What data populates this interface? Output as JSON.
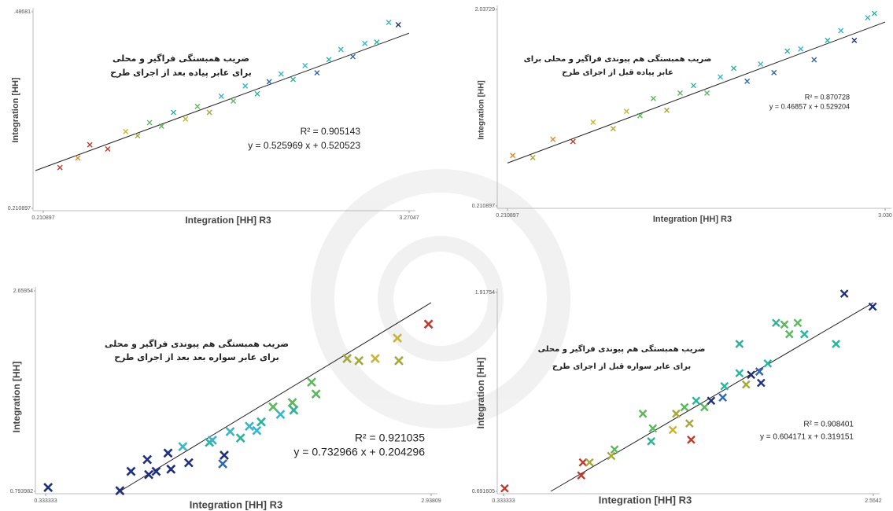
{
  "chart_data": [
    {
      "type": "scatter",
      "annotations": [
        "ضریب همبستگی فراگیر و محلی",
        "برای عابر پیاده بعد از اجرای طرح",
        "R² = 0.905143",
        "y = 0.525969 x + 0.520523"
      ],
      "xlabel": "Integration [HH] R3",
      "ylabel": "Integration [HH]",
      "xlim": [
        0.210897,
        3.27047
      ],
      "ylim": [
        0.210897,
        3.48681
      ],
      "xticks": [
        0.210897,
        3.27047
      ],
      "yticks": [
        0.210897,
        {
          "value": 3.48681,
          "label": ".48681"
        }
      ],
      "x": [
        0.35,
        0.5,
        0.6,
        0.75,
        0.9,
        1.0,
        1.1,
        1.2,
        1.3,
        1.4,
        1.5,
        1.6,
        1.7,
        1.8,
        1.9,
        2.0,
        2.1,
        2.2,
        2.3,
        2.4,
        2.5,
        2.6,
        2.7,
        2.8,
        2.9,
        3.0,
        3.1,
        3.18
      ],
      "y": [
        0.89,
        1.05,
        1.27,
        1.2,
        1.49,
        1.42,
        1.64,
        1.58,
        1.81,
        1.7,
        1.91,
        1.81,
        2.08,
        2.0,
        2.25,
        2.12,
        2.32,
        2.45,
        2.36,
        2.59,
        2.47,
        2.69,
        2.86,
        2.74,
        2.96,
        2.98,
        3.31,
        3.27
      ],
      "colors": [
        "#c0392b",
        "#d98c2b",
        "#c0392b",
        "#c0392b",
        "#c9b43a",
        "#a5a83a",
        "#5cb85c",
        "#5cb85c",
        "#2bb39b",
        "#c9b43a",
        "#5cb85c",
        "#a5a83a",
        "#3bb3c8",
        "#5cb85c",
        "#3bb3c8",
        "#2bb39b",
        "#3366aa",
        "#3bb3c8",
        "#2bb39b",
        "#3bb3c8",
        "#3366aa",
        "#2bb39b",
        "#3bb3c8",
        "#3366aa",
        "#3bb3c8",
        "#2bb39b",
        "#3bb3c8",
        "#1f2f7a"
      ],
      "fit_line": {
        "x": [
          0.145,
          3.27
        ],
        "y": [
          0.84,
          3.13
        ]
      }
    },
    {
      "type": "scatter",
      "annotations": [
        "ضریب همبستگی هم پیوندی فراگیر و محلی برای",
        "عابر پیاده قبل از اجرای طرح",
        "R² = 0.870728",
        "y = 0.46857 x + 0.529204"
      ],
      "xlabel": "Integration [HH] R3",
      "ylabel": "Integration [HH]",
      "xlim": [
        0.210897,
        3.03
      ],
      "ylim": [
        0.210897,
        2.03729
      ],
      "xticks": [
        0.210897,
        {
          "value": 3.03,
          "label": "3.030"
        }
      ],
      "yticks": [
        0.210897,
        2.03729
      ],
      "x": [
        0.25,
        0.4,
        0.55,
        0.7,
        0.85,
        1.0,
        1.1,
        1.2,
        1.3,
        1.4,
        1.5,
        1.6,
        1.7,
        1.8,
        1.9,
        2.0,
        2.1,
        2.2,
        2.3,
        2.4,
        2.5,
        2.6,
        2.7,
        2.8,
        2.9,
        2.95
      ],
      "y": [
        0.68,
        0.66,
        0.83,
        0.81,
        0.99,
        0.93,
        1.09,
        1.05,
        1.21,
        1.1,
        1.26,
        1.33,
        1.26,
        1.41,
        1.49,
        1.37,
        1.53,
        1.45,
        1.65,
        1.67,
        1.57,
        1.75,
        1.84,
        1.75,
        1.96,
        2.0
      ],
      "colors": [
        "#d98c2b",
        "#a5a83a",
        "#d98c2b",
        "#c0392b",
        "#c9b43a",
        "#a5a83a",
        "#c9b43a",
        "#5cb85c",
        "#5cb85c",
        "#a5a83a",
        "#5cb85c",
        "#2bb39b",
        "#5cb85c",
        "#3bb3c8",
        "#2bb39b",
        "#3366aa",
        "#3bb3c8",
        "#3366aa",
        "#2bb39b",
        "#3bb3c8",
        "#3366aa",
        "#2bb39b",
        "#3bb3c8",
        "#1f2f7a",
        "#3bb3c8",
        "#2bb39b"
      ],
      "fit_line": {
        "x": [
          0.210897,
          3.03
        ],
        "y": [
          0.61,
          1.92
        ]
      }
    },
    {
      "type": "scatter",
      "annotations": [
        "ضریب همبستگی هم پیوندی فراگیر و محلی",
        "برای عابر سواره بعد بعد از اجرای طرح",
        "R² = 0.921035",
        "y = 0.732966 x + 0.204296"
      ],
      "xlabel": "Integration [HH] R3",
      "ylabel": "Integration [HH]",
      "xlim": [
        0.333333,
        2.93809
      ],
      "ylim": [
        0.793982,
        2.65954
      ],
      "xticks": [
        0.333333,
        2.93809
      ],
      "yticks": [
        0.793982,
        2.65954
      ],
      "x": [
        0.35,
        0.835,
        0.91,
        1.02,
        1.03,
        1.08,
        1.16,
        1.18,
        1.26,
        1.3,
        1.44,
        1.46,
        1.54,
        1.53,
        1.58,
        1.65,
        1.71,
        1.76,
        1.79,
        1.87,
        1.92,
        2.0,
        2.01,
        2.13,
        2.16,
        2.37,
        2.45,
        2.56,
        2.71,
        2.72,
        2.92
      ],
      "y": [
        0.83,
        0.8,
        0.98,
        1.09,
        0.95,
        0.98,
        1.15,
        1.0,
        1.21,
        1.06,
        1.25,
        1.27,
        1.13,
        1.05,
        1.35,
        1.29,
        1.4,
        1.36,
        1.44,
        1.58,
        1.51,
        1.62,
        1.55,
        1.81,
        1.7,
        2.03,
        2.01,
        2.03,
        2.22,
        2.01,
        2.35
      ],
      "colors": [
        "#1f2f7a",
        "#1f2f7a",
        "#1f2f7a",
        "#1f2f7a",
        "#1f2f7a",
        "#1f2f7a",
        "#1f2f7a",
        "#1f2f7a",
        "#3bb3c8",
        "#1f2f7a",
        "#2bb39b",
        "#3bb3c8",
        "#1f2f7a",
        "#3366aa",
        "#3bb3c8",
        "#2bb39b",
        "#3bb3c8",
        "#3bb3c8",
        "#2bb39b",
        "#5cb85c",
        "#3bb3c8",
        "#5cb85c",
        "#2bb39b",
        "#5cb85c",
        "#5cb85c",
        "#a5a83a",
        "#a5a83a",
        "#c9b43a",
        "#c9b43a",
        "#a5a83a",
        "#c0392b"
      ],
      "fit_line": {
        "x": [
          0.835,
          2.93809
        ],
        "y": [
          0.793982,
          2.55
        ]
      }
    },
    {
      "type": "scatter",
      "annotations": [
        "ضریب همبستگی هم پیوندی فراگیر و محلی",
        "برای عابر سواره قبل از اجرای طرح",
        "R² = 0.908401",
        "y = 0.604171 x + 0.319151"
      ],
      "xlabel": "Integration [HH] R3",
      "ylabel": "Integration [HH]",
      "xlim": [
        0.333333,
        2.5542
      ],
      "ylim": [
        0.691605,
        1.91754
      ],
      "xticks": [
        0.333333,
        2.5542
      ],
      "yticks": [
        0.691605,
        1.91754
      ],
      "x": [
        0.34,
        0.8,
        0.81,
        0.85,
        0.98,
        1.0,
        1.22,
        1.23,
        1.17,
        1.35,
        1.37,
        1.45,
        1.46,
        1.42,
        1.49,
        1.54,
        1.58,
        1.65,
        1.66,
        1.75,
        1.79,
        1.82,
        1.87,
        1.88,
        1.92,
        1.75,
        1.97,
        2.02,
        2.05,
        2.1,
        2.14,
        2.33,
        2.38,
        2.55
      ],
      "y": [
        0.71,
        0.79,
        0.87,
        0.87,
        0.91,
        0.95,
        1.0,
        1.08,
        1.17,
        1.07,
        1.17,
        1.11,
        1.01,
        1.21,
        1.25,
        1.21,
        1.25,
        1.27,
        1.34,
        1.42,
        1.35,
        1.41,
        1.43,
        1.36,
        1.48,
        1.6,
        1.73,
        1.72,
        1.66,
        1.73,
        1.66,
        1.6,
        1.91,
        1.83
      ],
      "colors": [
        "#c0392b",
        "#c0392b",
        "#c0392b",
        "#a5a83a",
        "#a5a83a",
        "#5cb85c",
        "#2bb39b",
        "#5cb85c",
        "#5cb85c",
        "#c9b43a",
        "#a5a83a",
        "#a5a83a",
        "#c0392b",
        "#5cb85c",
        "#2bb39b",
        "#5cb85c",
        "#1f2f7a",
        "#3366aa",
        "#2bb39b",
        "#2bb39b",
        "#a5a83a",
        "#1f2f7a",
        "#3366aa",
        "#1f2f7a",
        "#2bb39b",
        "#2bb39b",
        "#2bb39b",
        "#5cb85c",
        "#5cb85c",
        "#5cb85c",
        "#2bb39b",
        "#2bb39b",
        "#1f2f7a",
        "#1f2f7a"
      ],
      "fit_line": {
        "x": [
          0.617,
          2.5542
        ],
        "y": [
          0.691605,
          1.855
        ]
      }
    }
  ]
}
